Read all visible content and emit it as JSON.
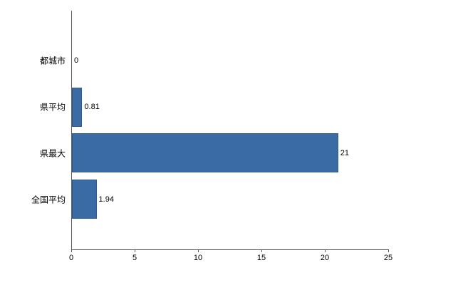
{
  "chart_data": {
    "type": "bar",
    "orientation": "horizontal",
    "title": "",
    "xlabel": "",
    "ylabel": "",
    "categories": [
      "都城市",
      "県平均",
      "県最大",
      "全国平均"
    ],
    "values": [
      0,
      0.81,
      21,
      1.94
    ],
    "value_labels": [
      "0",
      "0.81",
      "21",
      "1.94"
    ],
    "x_ticks": [
      0,
      5,
      10,
      15,
      20,
      25
    ],
    "xlim": [
      0,
      25
    ],
    "grid": false,
    "legend": false,
    "bar_color": "#3b6ba5",
    "axis_color": "#595959",
    "text_color": "#000000",
    "background_color": "#ffffff"
  }
}
